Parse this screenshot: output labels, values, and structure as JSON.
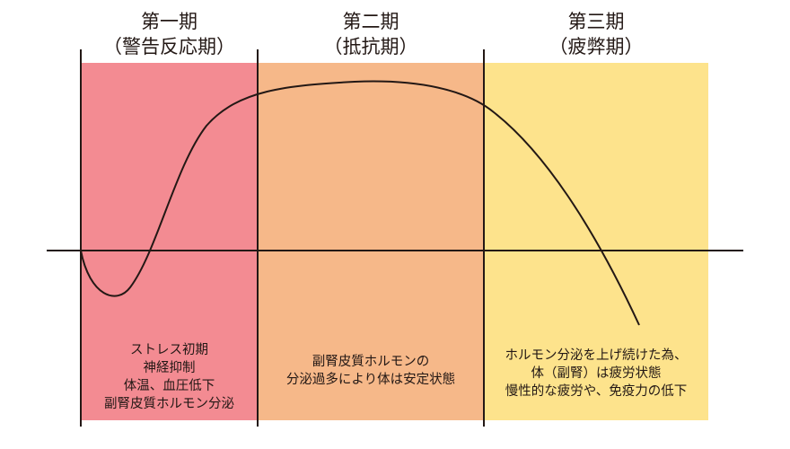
{
  "colors": {
    "phase1": "#f38b92",
    "phase2": "#f6b889",
    "phase3": "#fde38c",
    "ink": "#231815"
  },
  "phases": [
    {
      "title": "第一期",
      "subtitle": "（警告反応期）",
      "description": [
        "ストレス初期",
        "神経抑制",
        "体温、血圧低下",
        "副腎皮質ホルモン分泌"
      ]
    },
    {
      "title": "第二期",
      "subtitle": "（抵抗期）",
      "description": [
        "副腎皮質ホルモンの",
        "分泌過多により体は安定状態"
      ]
    },
    {
      "title": "第三期",
      "subtitle": "（疲弊期）",
      "description": [
        "ホルモン分泌を上げ続けた為、",
        "体（副腎）は疲労状態",
        "慢性的な疲労や、免疫力の低下"
      ]
    }
  ]
}
